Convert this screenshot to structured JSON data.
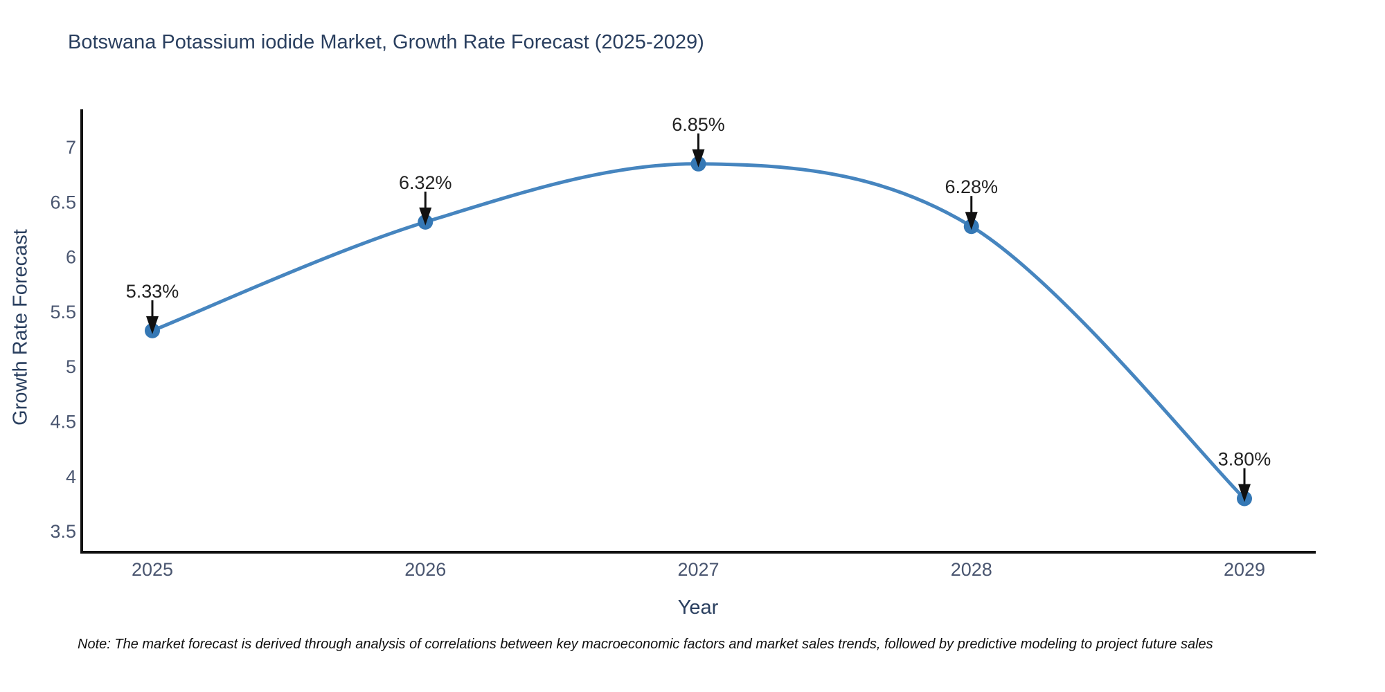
{
  "title": "Botswana Potassium iodide Market, Growth Rate Forecast (2025-2029)",
  "note": "Note: The market forecast is derived through analysis of correlations between key macroeconomic factors and market sales trends, followed by predictive modeling to project future sales",
  "chart_data": {
    "type": "line",
    "title": "Botswana Potassium iodide Market, Growth Rate Forecast (2025-2029)",
    "xlabel": "Year",
    "ylabel": "Growth Rate Forecast",
    "categories": [
      "2025",
      "2026",
      "2027",
      "2028",
      "2029"
    ],
    "values": [
      5.33,
      6.32,
      6.85,
      6.28,
      3.8
    ],
    "point_labels": [
      "5.33%",
      "6.32%",
      "6.85%",
      "6.28%",
      "3.80%"
    ],
    "yticks": [
      7,
      6.5,
      6,
      5.5,
      5,
      4.5,
      4,
      3.5
    ],
    "ylim": [
      3.3,
      7.35
    ],
    "grid": false,
    "legend": "none",
    "line_shape": "spline",
    "annotation_style": "arrow-down-to-point",
    "colors": {
      "line": "#4685bf",
      "marker": "#3578b5",
      "axis": "#111111",
      "arrow": "#111111",
      "title": "#2a3f5f",
      "tick": "#4a5670",
      "point_label": "#222222",
      "background": "#ffffff"
    }
  }
}
